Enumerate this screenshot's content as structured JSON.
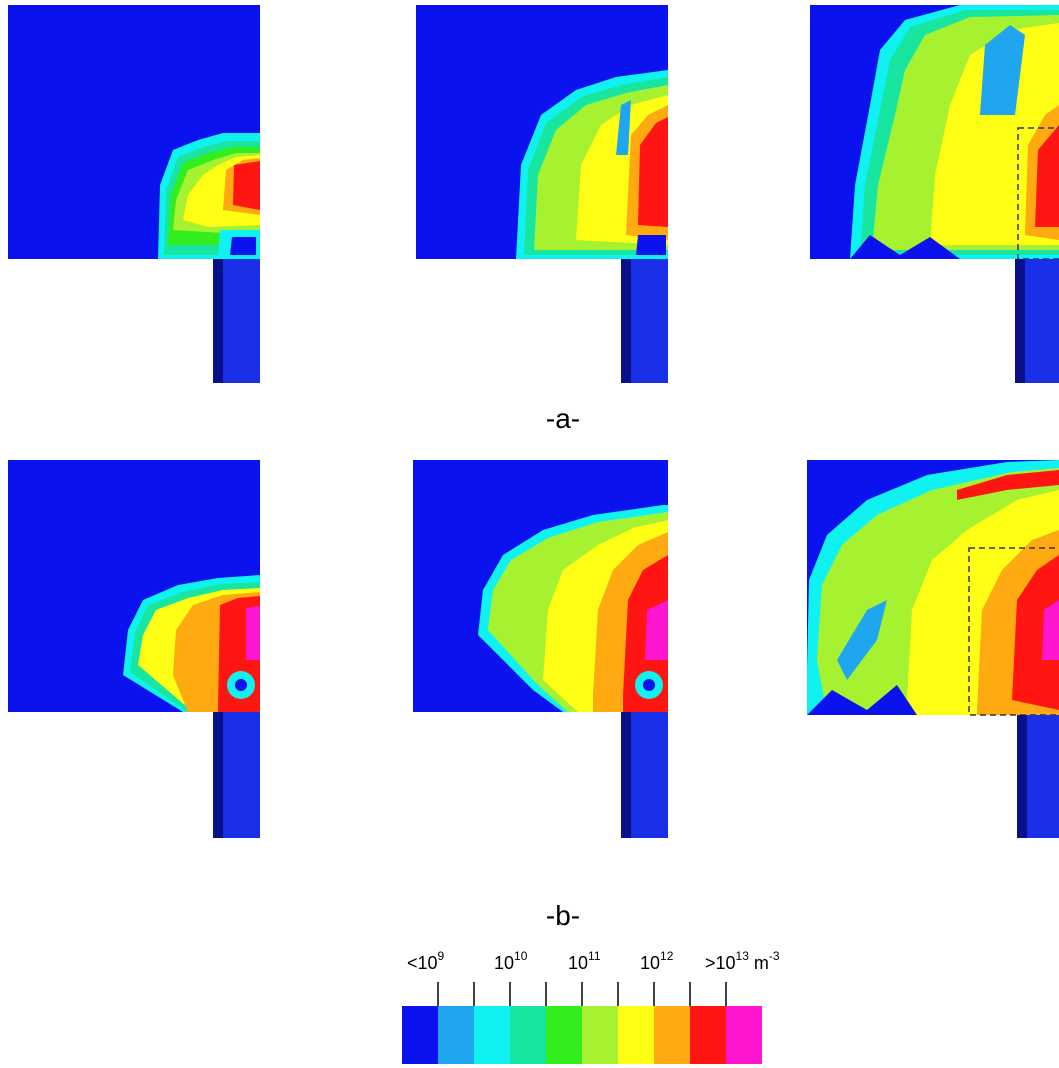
{
  "captions": {
    "row_a": "-a-",
    "row_b": "-b-"
  },
  "colors": {
    "L0": "#0a12ee",
    "L1": "#1fa6ee",
    "L2": "#10f2f2",
    "L3": "#18e6a0",
    "L4": "#33ee1e",
    "L5": "#a6f230",
    "L6": "#ffff16",
    "L7": "#ffaa10",
    "L8": "#ff1612",
    "L9": "#ff16d0",
    "rod_dark": "#0a0f8a",
    "rod_mid": "#1a2fe8",
    "dashed": "#333333"
  },
  "colorbar": {
    "levels": [
      "L0",
      "L1",
      "L2",
      "L3",
      "L4",
      "L5",
      "L6",
      "L7",
      "L8",
      "L9"
    ],
    "labels": [
      {
        "base": "<10",
        "exp": "9"
      },
      {
        "base": "10",
        "exp": "10"
      },
      {
        "base": "10",
        "exp": "11"
      },
      {
        "base": "10",
        "exp": "12"
      },
      {
        "base": ">10",
        "exp": "13"
      }
    ],
    "unit_base": "m",
    "unit_exp": "-3"
  }
}
